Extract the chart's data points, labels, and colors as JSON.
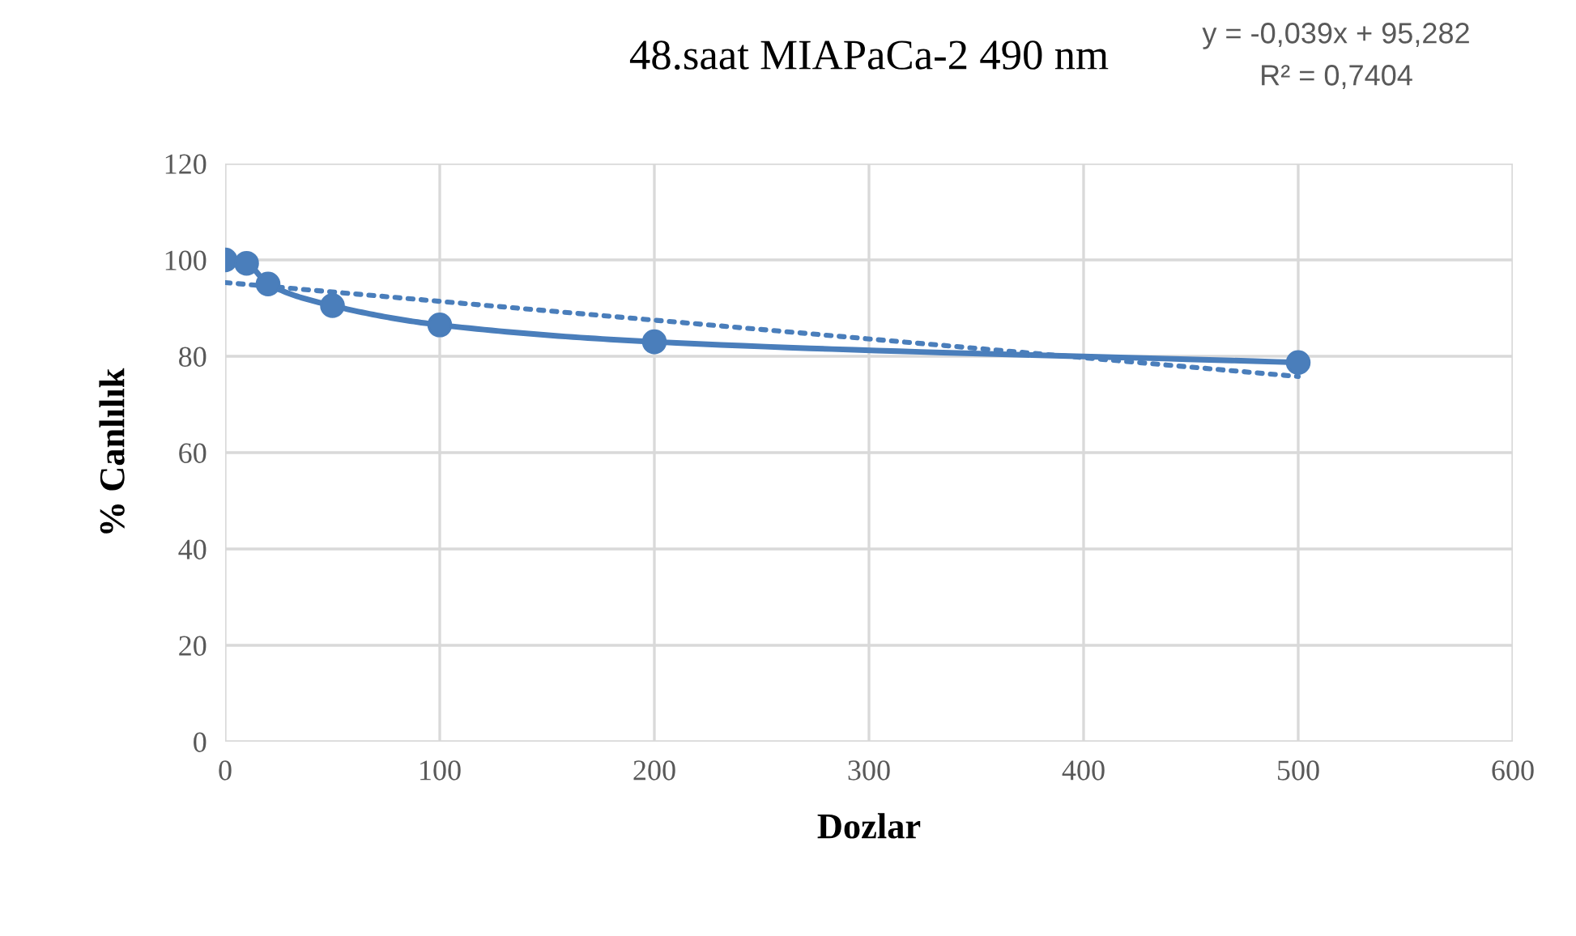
{
  "chart_data": {
    "type": "line",
    "title": "48.saat MIAPaCa-2 490 nm",
    "xlabel": "Dozlar",
    "ylabel": "% Canlılık",
    "x": [
      0,
      10,
      20,
      50,
      100,
      200,
      500
    ],
    "series": [
      {
        "color": "#4a7ebb",
        "marker": "circle",
        "line_style": "solid",
        "values": [
          100,
          99.3,
          95,
          90.5,
          86.5,
          83,
          78.7
        ]
      },
      {
        "type": "line",
        "color": "#4a7ebb",
        "marker": "none",
        "line_style": "dotted",
        "x": [
          0,
          500
        ],
        "values": [
          95.3,
          75.8
        ]
      }
    ],
    "annotations": [
      "y = -0,039x + 95,282",
      "R² = 0,7404"
    ],
    "xlim": [
      0,
      600
    ],
    "xticks": [
      0,
      100,
      200,
      300,
      400,
      500,
      600
    ],
    "ylim": [
      0,
      120
    ],
    "yticks": [
      0,
      20,
      40,
      60,
      80,
      100,
      120
    ],
    "grid": true,
    "legend": false
  }
}
